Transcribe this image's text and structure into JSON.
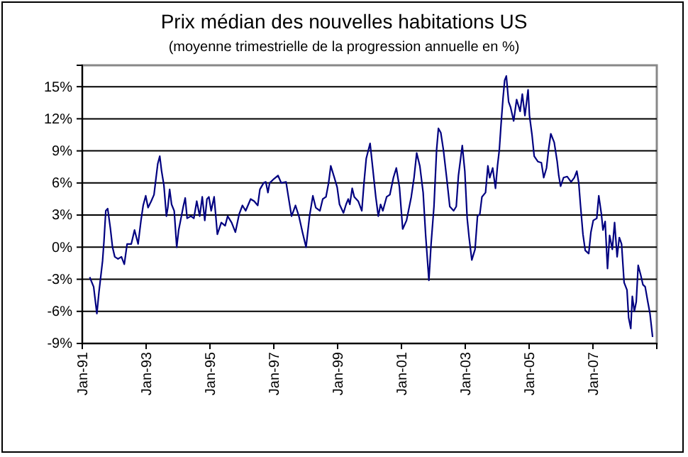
{
  "chart_data": {
    "type": "line",
    "title": "Prix médian des nouvelles habitations US",
    "subtitle": "(moyenne trimestrielle de la progression annuelle en %)",
    "xlim": [
      "1991-01",
      "2009-01"
    ],
    "xticks": [
      {
        "value": "1991-01",
        "label": "Jan-91"
      },
      {
        "value": "1993-01",
        "label": "Jan-93"
      },
      {
        "value": "1995-01",
        "label": "Jan-95"
      },
      {
        "value": "1997-01",
        "label": "Jan-97"
      },
      {
        "value": "1999-01",
        "label": "Jan-99"
      },
      {
        "value": "2001-01",
        "label": "Jan-01"
      },
      {
        "value": "2003-01",
        "label": "Jan-03"
      },
      {
        "value": "2005-01",
        "label": "Jan-05"
      },
      {
        "value": "2007-01",
        "label": "Jan-07"
      }
    ],
    "ylim": [
      -9,
      17
    ],
    "yticks": [
      {
        "value": -9,
        "label": "-9%"
      },
      {
        "value": -6,
        "label": "-6%"
      },
      {
        "value": -3,
        "label": "-3%"
      },
      {
        "value": 0,
        "label": "0%"
      },
      {
        "value": 3,
        "label": "3%"
      },
      {
        "value": 6,
        "label": "6%"
      },
      {
        "value": 9,
        "label": "9%"
      },
      {
        "value": 12,
        "label": "12%"
      },
      {
        "value": 15,
        "label": "15%"
      }
    ],
    "grid": "y",
    "marker": "none",
    "line_style": "solid",
    "series": [
      {
        "color": "#000080",
        "x": [
          "1991-03-27",
          "1991-05-11",
          "1991-06-17",
          "1991-07-11",
          "1991-08-21",
          "1991-09-06",
          "1991-09-27",
          "1991-10-19",
          "1991-11-18",
          "1991-12-13",
          "1992-01-08",
          "1992-02-14",
          "1992-03-24",
          "1992-04-26",
          "1992-05-28",
          "1992-07-15",
          "1992-08-21",
          "1992-10-01",
          "1992-11-03",
          "1992-11-28",
          "1992-12-27",
          "1993-01-23",
          "1993-02-28",
          "1993-04-01",
          "1993-04-23",
          "1993-05-14",
          "1993-06-06",
          "1993-06-27",
          "1993-07-23",
          "1993-08-21",
          "1993-09-06",
          "1993-09-27",
          "1993-10-19",
          "1993-11-18",
          "1993-12-17",
          "1994-01-08",
          "1994-01-30",
          "1994-03-02",
          "1994-03-24",
          "1994-04-15",
          "1994-05-28",
          "1994-07-01",
          "1994-08-03",
          "1994-09-06",
          "1994-10-05",
          "1994-11-03",
          "1994-11-28",
          "1994-12-20",
          "1995-01-15",
          "1995-02-18",
          "1995-03-27",
          "1995-05-11",
          "1995-06-24",
          "1995-07-23",
          "1995-09-06",
          "1995-10-19",
          "1995-12-02",
          "1996-01-08",
          "1996-02-14",
          "1996-04-11",
          "1996-05-21",
          "1996-07-01",
          "1996-07-26",
          "1996-09-06",
          "1996-10-01",
          "1996-10-26",
          "1996-11-14",
          "1997-01-05",
          "1997-02-18",
          "1997-03-27",
          "1997-05-21",
          "1997-06-17",
          "1997-07-23",
          "1997-09-06",
          "1997-10-15",
          "1997-11-25",
          "1998-01-05",
          "1998-02-14",
          "1998-03-24",
          "1998-04-26",
          "1998-06-13",
          "1998-07-15",
          "1998-08-21",
          "1998-09-20",
          "1998-10-15",
          "1998-11-25",
          "1998-12-27",
          "1999-01-23",
          "1999-03-09",
          "1999-04-08",
          "1999-05-03",
          "1999-05-21",
          "1999-06-17",
          "1999-07-11",
          "1999-08-25",
          "1999-10-05",
          "1999-10-30",
          "1999-11-25",
          "2000-01-08",
          "2000-02-07",
          "2000-03-13",
          "2000-04-11",
          "2000-05-07",
          "2000-06-02",
          "2000-07-15",
          "2000-08-21",
          "2000-10-01",
          "2000-11-03",
          "2000-12-09",
          "2001-01-15",
          "2001-02-28",
          "2001-04-23",
          "2001-05-25",
          "2001-06-24",
          "2001-07-30",
          "2001-09-06",
          "2001-10-05",
          "2001-11-11",
          "2001-12-06",
          "2002-01-08",
          "2002-02-07",
          "2002-02-28",
          "2002-03-27",
          "2002-04-26",
          "2002-06-02",
          "2002-07-08",
          "2002-08-21",
          "2002-09-20",
          "2002-10-15",
          "2002-11-28",
          "2002-12-27",
          "2003-01-23",
          "2003-02-14",
          "2003-03-17",
          "2003-04-23",
          "2003-05-21",
          "2003-06-17",
          "2003-07-11",
          "2003-08-21",
          "2003-09-17",
          "2003-10-08",
          "2003-11-11",
          "2003-12-13",
          "2004-01-05",
          "2004-01-26",
          "2004-02-14",
          "2004-03-09",
          "2004-03-27",
          "2004-04-15",
          "2004-05-11",
          "2004-06-02",
          "2004-07-08",
          "2004-08-11",
          "2004-09-20",
          "2004-10-15",
          "2004-11-14",
          "2004-12-20",
          "2005-01-05",
          "2005-02-03",
          "2005-02-28",
          "2005-04-11",
          "2005-05-21",
          "2005-06-17",
          "2005-07-19",
          "2005-08-11",
          "2005-09-06",
          "2005-10-15",
          "2005-11-18",
          "2005-12-06",
          "2005-12-27",
          "2006-01-30",
          "2006-03-13",
          "2006-04-26",
          "2006-06-02",
          "2006-07-01",
          "2006-07-23",
          "2006-08-11",
          "2006-09-09",
          "2006-10-05",
          "2006-11-14",
          "2006-12-09",
          "2007-01-05",
          "2007-02-14",
          "2007-03-09",
          "2007-04-08",
          "2007-04-26",
          "2007-05-21",
          "2007-06-17",
          "2007-07-11",
          "2007-08-11",
          "2007-09-06",
          "2007-10-05",
          "2007-10-30",
          "2007-11-25",
          "2007-12-24",
          "2008-01-26",
          "2008-02-14",
          "2008-03-09",
          "2008-03-27",
          "2008-04-19",
          "2008-05-11",
          "2008-06-02",
          "2008-07-01",
          "2008-07-26",
          "2008-08-21",
          "2008-09-20",
          "2008-10-15",
          "2008-11-14"
        ],
        "values": [
          -2.8,
          -3.7,
          -6.2,
          -4.2,
          -1.3,
          0.5,
          3.4,
          3.6,
          1.8,
          0,
          -0.9,
          -1.1,
          -0.9,
          -1.6,
          0.3,
          0.3,
          1.6,
          0.3,
          2.5,
          3.9,
          4.8,
          3.7,
          4.3,
          4.9,
          6.4,
          7.8,
          8.5,
          7.1,
          5.8,
          2.9,
          3.7,
          5.4,
          4.0,
          3.4,
          0,
          1.6,
          2.5,
          3.8,
          4.6,
          2.7,
          2.9,
          2.7,
          4.3,
          2.9,
          4.7,
          2.5,
          4.5,
          4.7,
          3.4,
          4.7,
          1.2,
          2.3,
          2.0,
          2.9,
          2.3,
          1.4,
          3.1,
          3.9,
          3.4,
          4.5,
          4.3,
          3.9,
          5.4,
          6.0,
          6.1,
          5.1,
          6.0,
          6.4,
          6.7,
          6.0,
          6.1,
          4.7,
          2.9,
          3.9,
          2.9,
          1.4,
          0,
          2.9,
          4.8,
          3.7,
          3.4,
          4.5,
          4.7,
          6.0,
          7.6,
          6.5,
          5.6,
          4.0,
          3.2,
          4.0,
          4.5,
          4.0,
          5.5,
          4.7,
          4.3,
          3.4,
          6.0,
          8.3,
          9.7,
          7.4,
          4.7,
          2.9,
          4.0,
          3.4,
          4.7,
          4.9,
          6.5,
          7.4,
          5.6,
          1.7,
          2.5,
          4.7,
          6.5,
          8.8,
          7.6,
          5.1,
          1.1,
          -3.1,
          0.3,
          3.8,
          9.1,
          11.1,
          10.7,
          9.1,
          6.5,
          3.8,
          3.4,
          3.8,
          6.7,
          9.5,
          7.1,
          2.7,
          0.9,
          -1.2,
          -0.2,
          2.9,
          3.1,
          4.7,
          5.1,
          7.6,
          6.5,
          7.4,
          5.5,
          7.6,
          9.1,
          11.4,
          14.0,
          15.6,
          16.0,
          13.6,
          13.1,
          11.8,
          13.8,
          12.7,
          14.3,
          12.3,
          14.7,
          12.3,
          10.5,
          8.5,
          8.0,
          7.9,
          6.5,
          7.4,
          9.1,
          10.6,
          9.8,
          8.0,
          6.7,
          5.7,
          6.5,
          6.6,
          6.1,
          6.5,
          7.1,
          6.0,
          4.0,
          1.2,
          -0.3,
          -0.6,
          1.4,
          2.5,
          2.7,
          4.8,
          3.1,
          1.6,
          2.4,
          -2.0,
          1.1,
          -0.2,
          2.3,
          -0.9,
          0.9,
          0.3,
          -3.3,
          -4.0,
          -6.6,
          -7.6,
          -4.6,
          -6.0,
          -5.1,
          -1.7,
          -2.6,
          -3.5,
          -3.7,
          -5.1,
          -6.2,
          -8.4
        ]
      }
    ]
  }
}
